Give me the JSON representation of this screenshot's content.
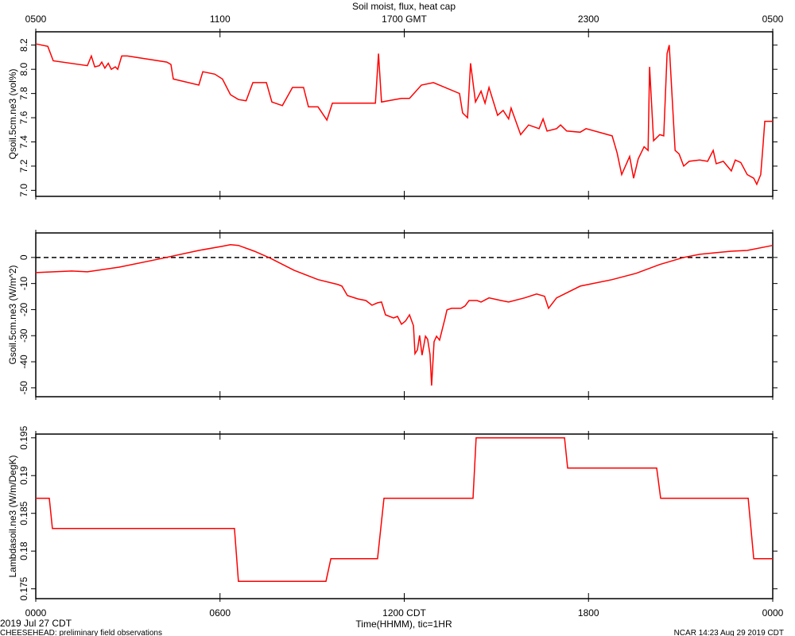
{
  "title": "Soil moist, flux, heat cap",
  "date_label": "2019 Jul 27 CDT",
  "xlabel": "Time(HHMM), tic=1HR",
  "footer_left": "CHEESEHEAD: preliminary field observations",
  "footer_right": "NCAR 14:23 Aug 29 2019 CDT",
  "chart_data": [
    {
      "type": "line",
      "ylabel": "Qsoil.5cm.ne3 (vol%)",
      "color": "#ff0000",
      "xlim": [
        0,
        24
      ],
      "xticks": [
        {
          "value": 0,
          "label": "0500"
        },
        {
          "value": 6,
          "label": "1100"
        },
        {
          "value": 12,
          "label": "1700 GMT"
        },
        {
          "value": 18,
          "label": "2300"
        },
        {
          "value": 24,
          "label": "0500"
        }
      ],
      "ylim": [
        6.95,
        8.31
      ],
      "yticks": [
        {
          "value": 7.0,
          "label": "7.0"
        },
        7.2,
        7.4,
        7.6,
        7.8,
        {
          "value": 8.0,
          "label": "8.0"
        },
        8.2
      ],
      "x": [
        0,
        0.39,
        0.57,
        1.68,
        1.81,
        1.92,
        2.07,
        2.15,
        2.25,
        2.36,
        2.46,
        2.59,
        2.67,
        2.8,
        2.98,
        4.27,
        4.4,
        4.48,
        5.31,
        5.44,
        5.83,
        6.08,
        6.34,
        6.6,
        6.85,
        7.07,
        7.51,
        7.69,
        8.03,
        8.36,
        8.72,
        8.88,
        9.19,
        9.48,
        9.66,
        11.06,
        11.16,
        11.26,
        11.91,
        12.17,
        12.56,
        12.95,
        13.8,
        13.9,
        14.06,
        14.16,
        14.32,
        14.5,
        14.63,
        14.76,
        15.04,
        15.22,
        15.4,
        15.48,
        15.79,
        16.05,
        16.39,
        16.52,
        16.65,
        16.96,
        17.09,
        17.29,
        17.73,
        17.92,
        18.77,
        18.93,
        19.08,
        19.34,
        19.47,
        19.62,
        19.81,
        19.94,
        19.99,
        20.12,
        20.32,
        20.45,
        20.56,
        20.63,
        20.82,
        20.95,
        21.1,
        21.28,
        21.62,
        21.88,
        22.06,
        22.16,
        22.39,
        22.65,
        22.78,
        22.96,
        23.17,
        23.38,
        23.48,
        23.61,
        23.69,
        23.74,
        24
      ],
      "values": [
        8.21,
        8.19,
        8.07,
        8.03,
        8.11,
        8.02,
        8.03,
        8.06,
        8.01,
        8.05,
        8.0,
        8.02,
        8.0,
        8.11,
        8.11,
        8.06,
        8.04,
        7.92,
        7.87,
        7.98,
        7.96,
        7.92,
        7.79,
        7.75,
        7.74,
        7.89,
        7.89,
        7.73,
        7.7,
        7.85,
        7.85,
        7.69,
        7.69,
        7.58,
        7.72,
        7.72,
        8.13,
        7.73,
        7.76,
        7.76,
        7.87,
        7.89,
        7.8,
        7.64,
        7.6,
        8.05,
        7.73,
        7.82,
        7.72,
        7.85,
        7.62,
        7.66,
        7.59,
        7.68,
        7.46,
        7.54,
        7.51,
        7.59,
        7.49,
        7.51,
        7.54,
        7.49,
        7.48,
        7.51,
        7.45,
        7.31,
        7.13,
        7.28,
        7.1,
        7.26,
        7.36,
        7.33,
        8.02,
        7.41,
        7.46,
        7.45,
        8.13,
        8.2,
        7.33,
        7.3,
        7.2,
        7.24,
        7.25,
        7.24,
        7.33,
        7.22,
        7.24,
        7.16,
        7.25,
        7.23,
        7.13,
        7.1,
        7.05,
        7.13,
        7.39,
        7.57,
        7.57
      ]
    },
    {
      "type": "line",
      "ylabel": "Gsoil.5cm.ne3 (W/m^2)",
      "color": "#ff0000",
      "xlim": [
        0,
        24
      ],
      "xticks": [
        0,
        6,
        12,
        18,
        24
      ],
      "ylim": [
        -53.4,
        9.4
      ],
      "yticks": [
        -50,
        -40,
        -30,
        -20,
        -10,
        0
      ],
      "hline": 0,
      "x": [
        0,
        1.17,
        1.68,
        2.72,
        4.01,
        5.31,
        6.08,
        6.34,
        6.6,
        7.12,
        7.64,
        8.41,
        9.19,
        9.84,
        9.97,
        10.15,
        10.49,
        10.75,
        10.95,
        11.13,
        11.26,
        11.39,
        11.65,
        11.78,
        11.91,
        12.04,
        12.17,
        12.3,
        12.35,
        12.43,
        12.5,
        12.58,
        12.69,
        12.76,
        12.84,
        12.89,
        12.97,
        13.05,
        13.15,
        13.33,
        13.39,
        13.54,
        13.85,
        13.98,
        14.11,
        14.37,
        14.5,
        14.76,
        15.15,
        15.4,
        15.92,
        16.31,
        16.57,
        16.7,
        16.96,
        17.73,
        18.77,
        19.55,
        20.32,
        21.1,
        21.62,
        22.14,
        22.65,
        23.17,
        24
      ],
      "values": [
        -5.8,
        -5.2,
        -5.5,
        -3.7,
        -0.6,
        2.7,
        4.3,
        4.9,
        4.6,
        2.4,
        -0.3,
        -4.9,
        -8.5,
        -10.4,
        -11,
        -14.6,
        -15.9,
        -16.5,
        -18.3,
        -17.4,
        -17.1,
        -22,
        -23.2,
        -22.6,
        -25.6,
        -24.4,
        -22,
        -26.2,
        -36.9,
        -35.4,
        -29.9,
        -37.5,
        -30.2,
        -31.4,
        -37.2,
        -49.1,
        -32.3,
        -30.2,
        -31.7,
        -23.2,
        -20.1,
        -19.5,
        -19.5,
        -18.6,
        -16.5,
        -16.5,
        -17.1,
        -15.5,
        -16.5,
        -17.1,
        -15.5,
        -14,
        -14.9,
        -19.5,
        -15.5,
        -11,
        -8.5,
        -6.1,
        -2.7,
        0,
        1.2,
        1.8,
        2.4,
        2.7,
        4.6
      ]
    },
    {
      "type": "line",
      "ylabel": "Lambdasoil.ne3 (W/m/DegK)",
      "color": "#ff0000",
      "xlim": [
        0,
        24
      ],
      "xticks": [
        {
          "value": 0,
          "label": "0000"
        },
        {
          "value": 6,
          "label": "0600"
        },
        {
          "value": 12,
          "label": "1200 CDT"
        },
        {
          "value": 18,
          "label": "1800"
        },
        {
          "value": 24,
          "label": "0000"
        }
      ],
      "ylim": [
        0.1737,
        0.1955
      ],
      "yticks": [
        0.175,
        0.18,
        0.185,
        0.19,
        0.195
      ],
      "x": [
        0,
        0.44,
        0.54,
        6.47,
        6.6,
        9.45,
        9.61,
        11.13,
        11.34,
        14.24,
        14.34,
        17.22,
        17.32,
        20.22,
        20.35,
        23.2,
        23.38,
        24
      ],
      "values": [
        0.187,
        0.187,
        0.183,
        0.183,
        0.176,
        0.176,
        0.179,
        0.179,
        0.187,
        0.187,
        0.195,
        0.195,
        0.191,
        0.191,
        0.187,
        0.187,
        0.179,
        0.179
      ]
    }
  ]
}
